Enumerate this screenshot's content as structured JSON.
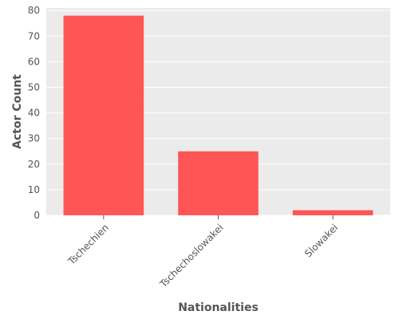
{
  "chart_data": {
    "type": "bar",
    "title": "",
    "xlabel": "Nationalities",
    "ylabel": "Actor Count",
    "categories": [
      "Tschechien",
      "Tschechoslowakei",
      "Slowakei"
    ],
    "values": [
      78,
      25,
      2
    ],
    "ylim": [
      0,
      81
    ],
    "yticks": [
      0,
      10,
      20,
      30,
      40,
      50,
      60,
      70,
      80
    ],
    "grid": true,
    "bar_color": "#ff5555",
    "background_color": "#ebebeb",
    "grid_color": "#ffffff"
  }
}
